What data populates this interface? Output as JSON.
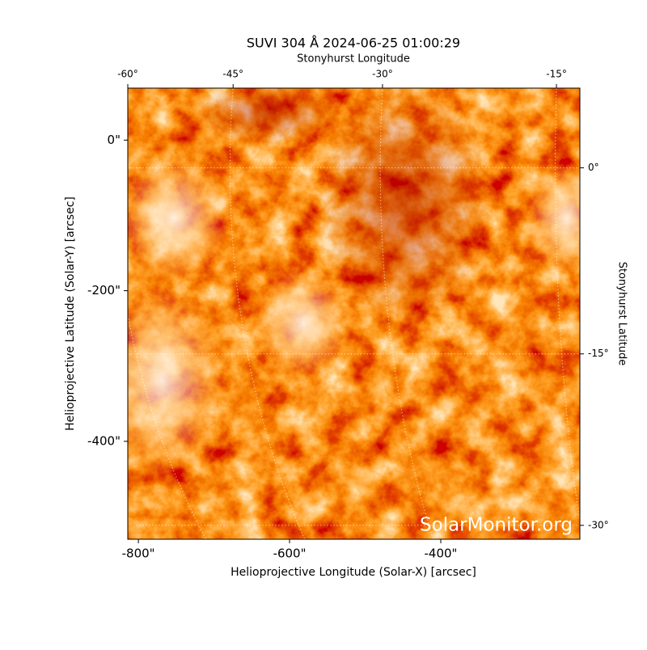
{
  "chart_data": {
    "type": "image",
    "title": "SUVI 304 Å 2024-06-25 01:00:29",
    "xlabel": "Helioprojective Longitude (Solar-X) [arcsec]",
    "ylabel": "Helioprojective Latitude (Solar-Y) [arcsec]",
    "x2label": "Stonyhurst Longitude",
    "y2label": "Stonyhurst Latitude",
    "xlim": [
      -814,
      -216
    ],
    "ylim": [
      -530,
      69
    ],
    "xticks": [
      {
        "value": -800,
        "label": "-800\""
      },
      {
        "value": -600,
        "label": "-600\""
      },
      {
        "value": -400,
        "label": "-400\""
      }
    ],
    "yticks": [
      {
        "value": 0,
        "label": "0\""
      },
      {
        "value": -200,
        "label": "-200\""
      },
      {
        "value": -400,
        "label": "-400\""
      }
    ],
    "x2ticks": [
      {
        "value": -60,
        "label": "-60°"
      },
      {
        "value": -45,
        "label": "-45°"
      },
      {
        "value": -30,
        "label": "-30°"
      },
      {
        "value": -15,
        "label": "-15°"
      }
    ],
    "y2ticks": [
      {
        "value": 0,
        "label": "0°"
      },
      {
        "value": -15,
        "label": "-15°"
      },
      {
        "value": -30,
        "label": "-30°"
      }
    ],
    "grid": true,
    "watermark": "SolarMonitor.org"
  }
}
